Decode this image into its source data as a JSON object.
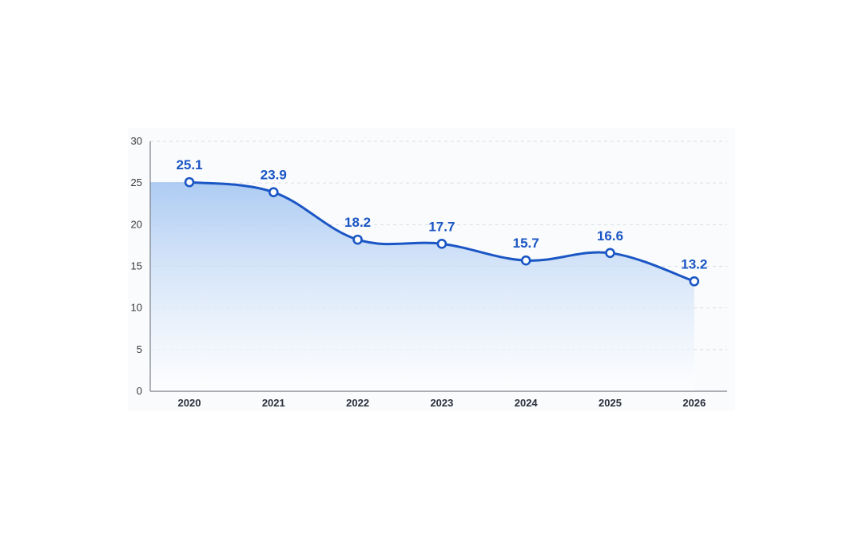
{
  "chart_data": {
    "type": "area",
    "title": "",
    "xlabel": "",
    "ylabel": "",
    "categories": [
      "2020",
      "2021",
      "2022",
      "2023",
      "2024",
      "2025",
      "2026"
    ],
    "series": [
      {
        "values": [
          25.1,
          23.9,
          18.2,
          17.7,
          15.7,
          16.6,
          13.2
        ]
      }
    ],
    "data_labels": [
      "25.1",
      "23.9",
      "18.2",
      "17.7",
      "15.7",
      "16.6",
      "13.2"
    ],
    "ylim": [
      0,
      30
    ],
    "y_ticks": [
      0,
      5,
      10,
      15,
      20,
      25,
      30
    ],
    "y_tick_labels": [
      "0",
      "5",
      "10",
      "15",
      "20",
      "25",
      "30"
    ],
    "grid": true,
    "grid_style": "dashed-horizontal",
    "legend": "none",
    "colors": {
      "line": "#1a56c4",
      "marker_fill": "#ffffff",
      "area_top": "#a9c9f2",
      "area_bottom": "#ffffff",
      "label": "#1a56c4",
      "grid": "#d9dde3",
      "axis": "#7a7f87"
    }
  }
}
